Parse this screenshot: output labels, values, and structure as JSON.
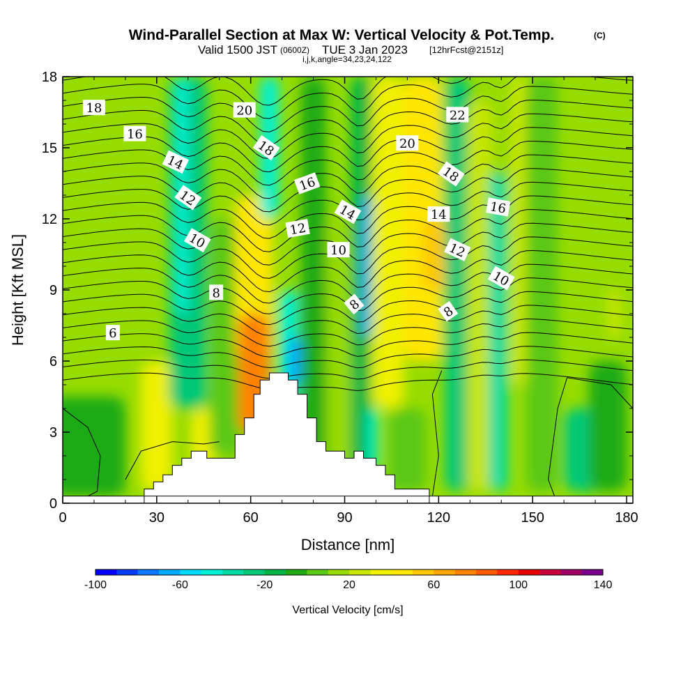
{
  "title": {
    "main": "Wind-Parallel Section at Max W: Vertical Velocity & Pot.Temp.",
    "copyright": "(C)",
    "valid_prefix": "Valid 1500 JST",
    "utc": "(0600Z)",
    "valid_date": "TUE 3 Jan 2023",
    "forecast": "[12hrFcst@2151z]",
    "indices": "i,j,k,angle=34,23,24,122"
  },
  "chart_data": {
    "type": "heatmap",
    "xlabel": "Distance [nm]",
    "ylabel": "Height [Kft MSL]",
    "xlim": [
      0,
      182
    ],
    "ylim": [
      0,
      18
    ],
    "xticks": [
      0,
      30,
      60,
      90,
      120,
      150,
      180
    ],
    "yticks": [
      0,
      3,
      6,
      9,
      12,
      15,
      18
    ],
    "colorbar": {
      "label": "Vertical Velocity [cm/s]",
      "range": [
        -100,
        140
      ],
      "step": 10,
      "tick_values": [
        -100,
        -60,
        -20,
        20,
        60,
        100,
        140
      ],
      "colors": [
        "#0000ff",
        "#0a3cf5",
        "#0a78ff",
        "#00aaff",
        "#00dcff",
        "#00f0d7",
        "#00dca5",
        "#00c878",
        "#00b446",
        "#1eaa14",
        "#5ac814",
        "#96dc00",
        "#c8e600",
        "#f0f000",
        "#ffe600",
        "#ffc800",
        "#ffa500",
        "#ff8200",
        "#ff5a00",
        "#ff2800",
        "#e60000",
        "#c8003c",
        "#a00064",
        "#78008c"
      ]
    },
    "terrain_profile": [
      [
        26,
        0.3
      ],
      [
        26,
        0.6
      ],
      [
        29,
        0.6
      ],
      [
        29,
        0.9
      ],
      [
        32,
        0.9
      ],
      [
        32,
        1.2
      ],
      [
        35,
        1.2
      ],
      [
        35,
        1.6
      ],
      [
        38,
        1.6
      ],
      [
        38,
        1.9
      ],
      [
        41,
        1.9
      ],
      [
        41,
        2.2
      ],
      [
        46,
        2.2
      ],
      [
        46,
        1.9
      ],
      [
        55,
        1.9
      ],
      [
        55,
        2.9
      ],
      [
        58,
        2.9
      ],
      [
        58,
        3.6
      ],
      [
        61,
        3.6
      ],
      [
        61,
        4.6
      ],
      [
        63,
        4.6
      ],
      [
        63,
        5.2
      ],
      [
        66,
        5.2
      ],
      [
        66,
        5.5
      ],
      [
        72,
        5.5
      ],
      [
        72,
        5.2
      ],
      [
        75,
        5.2
      ],
      [
        75,
        4.6
      ],
      [
        78,
        4.6
      ],
      [
        78,
        3.6
      ],
      [
        81,
        3.6
      ],
      [
        81,
        2.6
      ],
      [
        84,
        2.6
      ],
      [
        84,
        2.2
      ],
      [
        90,
        2.2
      ],
      [
        90,
        1.9
      ],
      [
        93,
        1.9
      ],
      [
        93,
        2.2
      ],
      [
        96,
        2.2
      ],
      [
        96,
        1.9
      ],
      [
        100,
        1.9
      ],
      [
        100,
        1.6
      ],
      [
        103,
        1.6
      ],
      [
        103,
        1.2
      ],
      [
        106,
        1.2
      ],
      [
        106,
        0.6
      ],
      [
        117,
        0.6
      ],
      [
        117,
        0.3
      ]
    ],
    "theta_contour_labels": [
      {
        "text": "18",
        "x": 10,
        "y": 16.7,
        "angle": 0
      },
      {
        "text": "16",
        "x": 23,
        "y": 15.6,
        "angle": 0
      },
      {
        "text": "14",
        "x": 36,
        "y": 14.4,
        "angle": 25
      },
      {
        "text": "12",
        "x": 40,
        "y": 12.9,
        "angle": 35
      },
      {
        "text": "10",
        "x": 43,
        "y": 11.1,
        "angle": 30
      },
      {
        "text": "8",
        "x": 49,
        "y": 8.9,
        "angle": 0
      },
      {
        "text": "6",
        "x": 16,
        "y": 7.2,
        "angle": 0
      },
      {
        "text": "20",
        "x": 58,
        "y": 16.6,
        "angle": 0
      },
      {
        "text": "18",
        "x": 65,
        "y": 15.0,
        "angle": 35
      },
      {
        "text": "16",
        "x": 78,
        "y": 13.5,
        "angle": -20
      },
      {
        "text": "12",
        "x": 75,
        "y": 11.6,
        "angle": -10
      },
      {
        "text": "10",
        "x": 88,
        "y": 10.7,
        "angle": 0
      },
      {
        "text": "14",
        "x": 91,
        "y": 12.3,
        "angle": 30
      },
      {
        "text": "8",
        "x": 93,
        "y": 8.4,
        "angle": -40
      },
      {
        "text": "20",
        "x": 110,
        "y": 15.2,
        "angle": 0
      },
      {
        "text": "22",
        "x": 126,
        "y": 16.4,
        "angle": 0
      },
      {
        "text": "18",
        "x": 124,
        "y": 13.9,
        "angle": 35
      },
      {
        "text": "14",
        "x": 120,
        "y": 12.2,
        "angle": 0
      },
      {
        "text": "12",
        "x": 126,
        "y": 10.7,
        "angle": 25
      },
      {
        "text": "8",
        "x": 123,
        "y": 8.1,
        "angle": -35
      },
      {
        "text": "16",
        "x": 139,
        "y": 12.5,
        "angle": 10
      },
      {
        "text": "10",
        "x": 140,
        "y": 9.5,
        "angle": 30
      }
    ]
  }
}
